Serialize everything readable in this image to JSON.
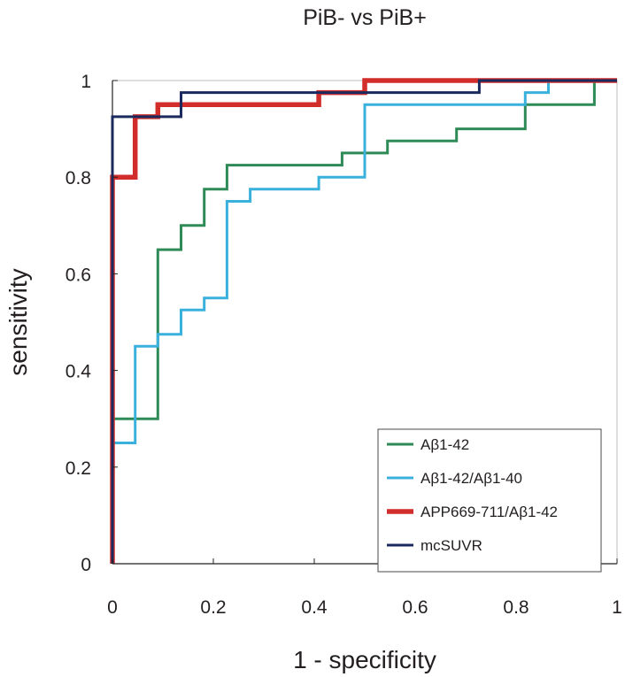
{
  "chart_data": {
    "type": "line",
    "title": "PiB- vs PiB+",
    "xlabel": "1 - specificity",
    "ylabel": "sensitivity",
    "xlim": [
      0,
      1
    ],
    "ylim": [
      0,
      1
    ],
    "x_ticks": [
      "0",
      "0.2",
      "0.4",
      "0.6",
      "0.8",
      "1"
    ],
    "y_ticks": [
      "0",
      "0.2",
      "0.4",
      "0.6",
      "0.8",
      "1"
    ],
    "grid": false,
    "legend_position": "bottom-right",
    "series": [
      {
        "name": "Aβ1-42",
        "color": "#2e8b57",
        "points": [
          [
            0,
            0
          ],
          [
            0,
            0.3
          ],
          [
            0.09,
            0.3
          ],
          [
            0.09,
            0.65
          ],
          [
            0.136,
            0.65
          ],
          [
            0.136,
            0.7
          ],
          [
            0.182,
            0.7
          ],
          [
            0.182,
            0.775
          ],
          [
            0.227,
            0.775
          ],
          [
            0.227,
            0.825
          ],
          [
            0.455,
            0.825
          ],
          [
            0.455,
            0.85
          ],
          [
            0.545,
            0.85
          ],
          [
            0.545,
            0.875
          ],
          [
            0.682,
            0.875
          ],
          [
            0.682,
            0.9
          ],
          [
            0.818,
            0.9
          ],
          [
            0.818,
            0.95
          ],
          [
            0.955,
            0.95
          ],
          [
            0.955,
            0.975
          ],
          [
            0.955,
            0.975
          ],
          [
            0.955,
            1
          ],
          [
            1,
            1
          ]
        ]
      },
      {
        "name": "Aβ1-42/Aβ1-40",
        "color": "#3ab0dd",
        "points": [
          [
            0,
            0
          ],
          [
            0,
            0.25
          ],
          [
            0.045,
            0.25
          ],
          [
            0.045,
            0.45
          ],
          [
            0.09,
            0.45
          ],
          [
            0.09,
            0.475
          ],
          [
            0.136,
            0.475
          ],
          [
            0.136,
            0.525
          ],
          [
            0.182,
            0.525
          ],
          [
            0.182,
            0.55
          ],
          [
            0.227,
            0.55
          ],
          [
            0.227,
            0.75
          ],
          [
            0.273,
            0.75
          ],
          [
            0.273,
            0.775
          ],
          [
            0.409,
            0.775
          ],
          [
            0.409,
            0.8
          ],
          [
            0.5,
            0.8
          ],
          [
            0.5,
            0.95
          ],
          [
            0.818,
            0.95
          ],
          [
            0.818,
            0.975
          ],
          [
            0.864,
            0.975
          ],
          [
            0.864,
            1
          ],
          [
            1,
            1
          ]
        ]
      },
      {
        "name": "APP669-711/Aβ1-42",
        "color": "#d12d2a",
        "points": [
          [
            0,
            0
          ],
          [
            0,
            0.8
          ],
          [
            0.045,
            0.8
          ],
          [
            0.045,
            0.925
          ],
          [
            0.09,
            0.925
          ],
          [
            0.09,
            0.95
          ],
          [
            0.409,
            0.95
          ],
          [
            0.409,
            0.975
          ],
          [
            0.5,
            0.975
          ],
          [
            0.5,
            1
          ],
          [
            1,
            1
          ]
        ]
      },
      {
        "name": "mcSUVR",
        "color": "#1b2a5e",
        "points": [
          [
            0,
            0
          ],
          [
            0,
            0.925
          ],
          [
            0.136,
            0.925
          ],
          [
            0.136,
            0.975
          ],
          [
            0.727,
            0.975
          ],
          [
            0.727,
            1
          ],
          [
            1,
            1
          ]
        ]
      }
    ]
  }
}
